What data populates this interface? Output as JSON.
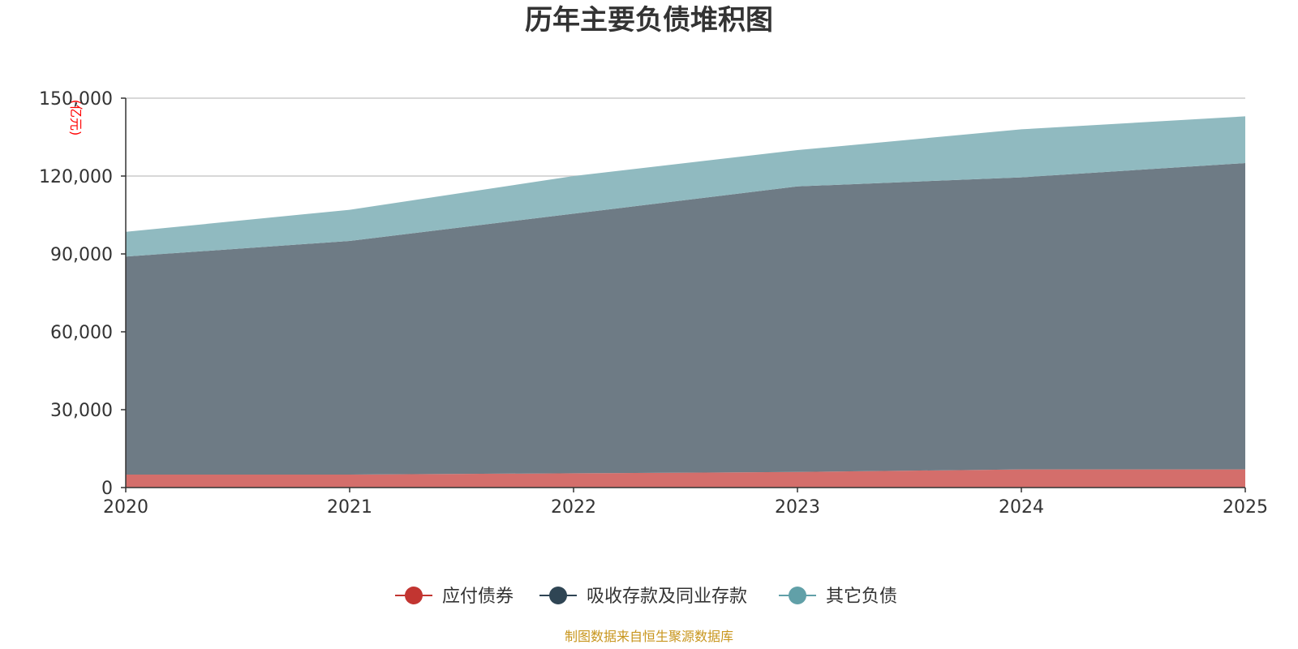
{
  "chart_data": {
    "type": "area",
    "stacked": true,
    "title": "历年主要负债堆积图",
    "unit_label": "(亿元)",
    "x": [
      "2020",
      "2021",
      "2022",
      "2023",
      "2024",
      "2025"
    ],
    "ylim": [
      0,
      150000
    ],
    "yticks": [
      0,
      30000,
      60000,
      90000,
      120000,
      150000
    ],
    "ytick_labels": [
      "0",
      "30,000",
      "60,000",
      "90,000",
      "120,000",
      "150,000"
    ],
    "grid": true,
    "legend_position": "bottom",
    "series": [
      {
        "name": "应付债券",
        "values": [
          5000,
          5000,
          5500,
          6000,
          7000,
          7000
        ],
        "color": "#c23531",
        "fill": "#d46e6b"
      },
      {
        "name": "吸收存款及同业存款",
        "values": [
          84000,
          90000,
          100000,
          110000,
          112500,
          118000
        ],
        "color": "#2f4554",
        "fill": "#6e7b85"
      },
      {
        "name": "其它负债",
        "values": [
          9500,
          12000,
          14500,
          14000,
          18500,
          18000
        ],
        "color": "#61a0a8",
        "fill": "#90bac0"
      }
    ],
    "source": "制图数据来自恒生聚源数据库"
  }
}
